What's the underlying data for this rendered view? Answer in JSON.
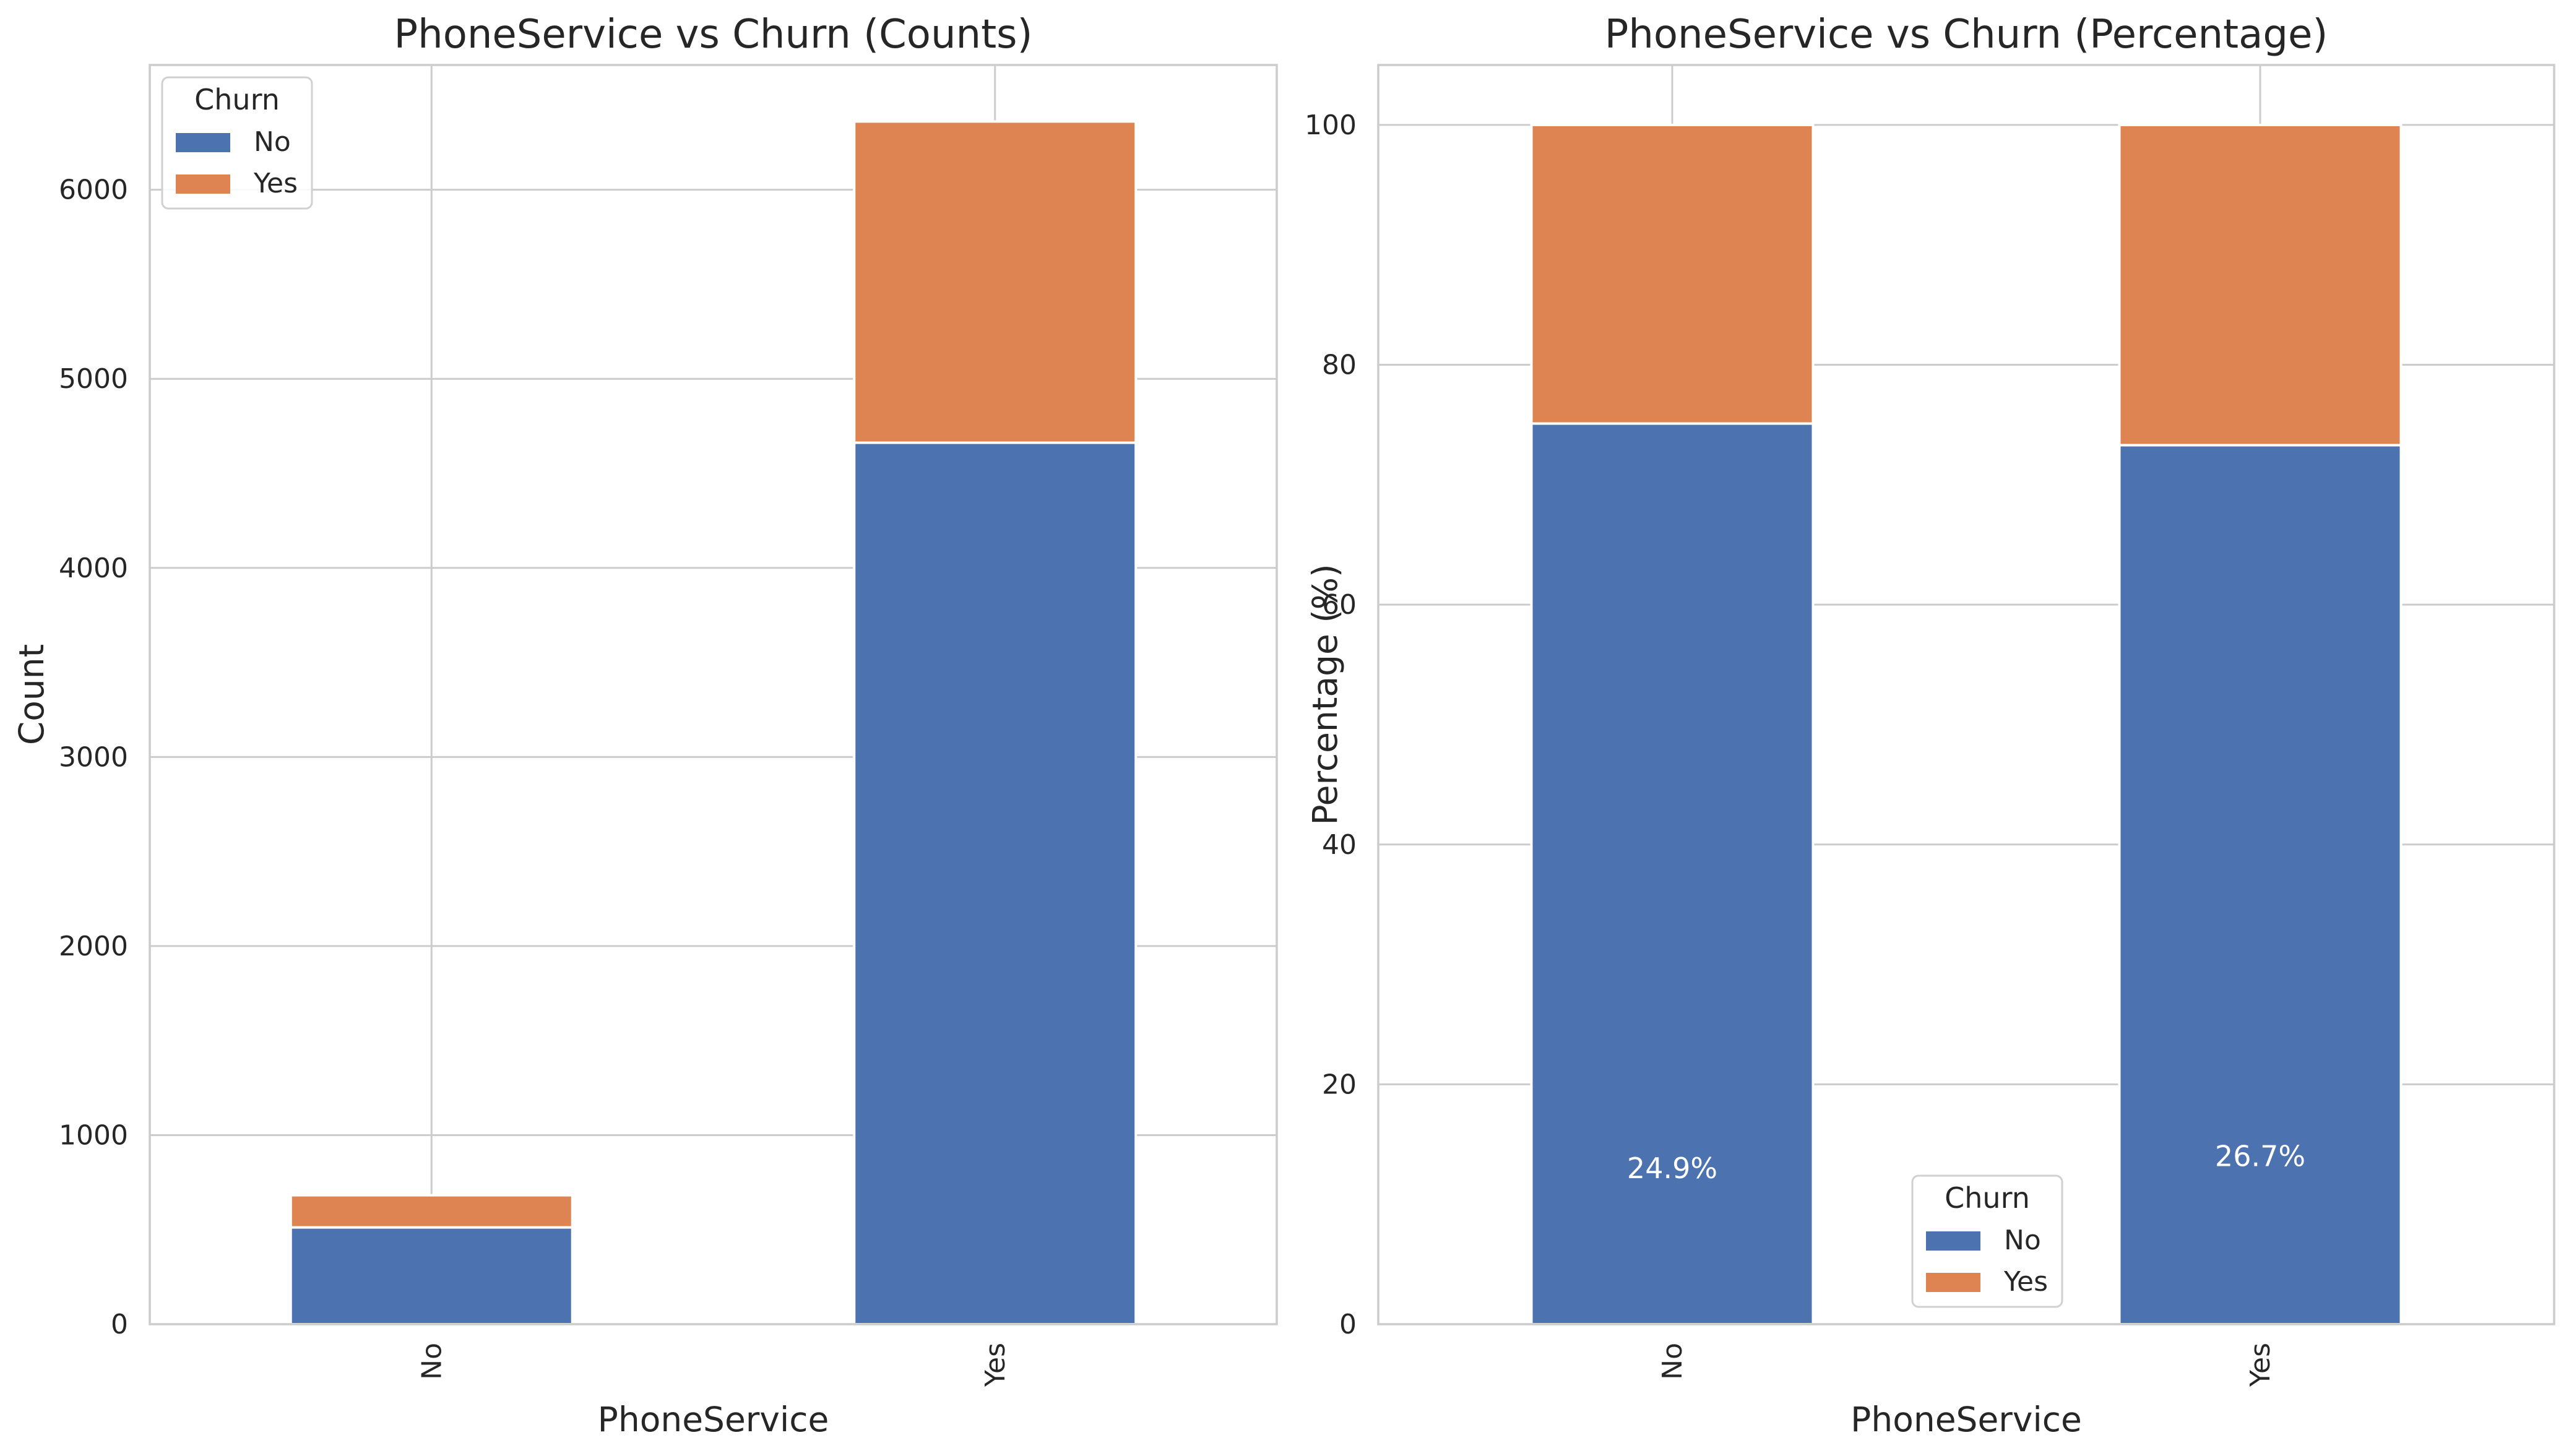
{
  "colors": {
    "No": "#4c72b0",
    "Yes": "#dd8452",
    "grid": "#cccccc",
    "spine": "#cccccc",
    "text": "#262626",
    "bg": "#ffffff",
    "pct_label": "#ffffff"
  },
  "chart_data": [
    {
      "type": "bar",
      "stacked": true,
      "title": "PhoneService vs Churn (Counts)",
      "xlabel": "PhoneService",
      "ylabel": "Count",
      "categories": [
        "No",
        "Yes"
      ],
      "series": [
        {
          "name": "No",
          "values": [
            512,
            4662
          ]
        },
        {
          "name": "Yes",
          "values": [
            170,
            1699
          ]
        }
      ],
      "ylim": [
        0,
        6660
      ],
      "yticks": [
        0,
        1000,
        2000,
        3000,
        4000,
        5000,
        6000
      ],
      "ytick_labels": [
        "0",
        "1000",
        "2000",
        "3000",
        "4000",
        "5000",
        "6000"
      ],
      "grid": true,
      "legend": {
        "title": "Churn",
        "placement": "upper left",
        "entries": [
          "No",
          "Yes"
        ]
      }
    },
    {
      "type": "bar",
      "stacked": true,
      "title": "PhoneService vs Churn (Percentage)",
      "xlabel": "PhoneService",
      "ylabel": "Percentage (%)",
      "categories": [
        "No",
        "Yes"
      ],
      "series": [
        {
          "name": "No",
          "values": [
            75.1,
            73.3
          ]
        },
        {
          "name": "Yes",
          "values": [
            24.9,
            26.7
          ]
        }
      ],
      "ylim": [
        0,
        105
      ],
      "yticks": [
        0,
        20,
        40,
        60,
        80,
        100
      ],
      "ytick_labels": [
        "0",
        "20",
        "40",
        "60",
        "80",
        "100"
      ],
      "grid": true,
      "legend": {
        "title": "Churn",
        "placement": "lower center",
        "entries": [
          "No",
          "Yes"
        ]
      },
      "annotations": [
        {
          "category": "No",
          "text": "24.9%",
          "y": 13
        },
        {
          "category": "Yes",
          "text": "26.7%",
          "y": 14
        }
      ]
    }
  ]
}
